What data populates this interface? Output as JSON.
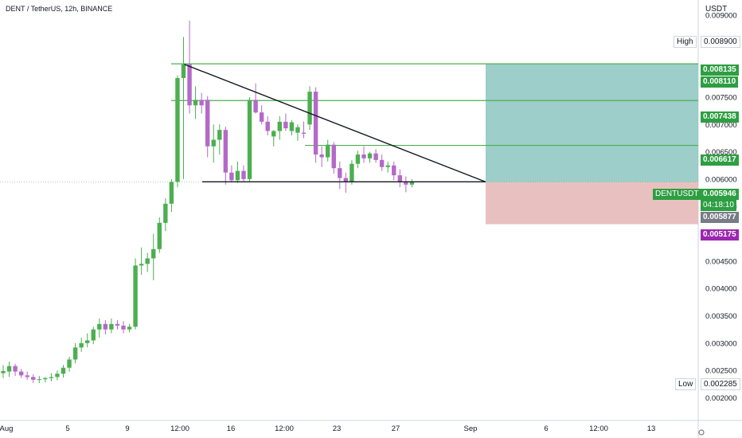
{
  "header": {
    "symbol_title": "DENT / TetherUS, 12h, BINANCE",
    "currency": "USDT"
  },
  "colors": {
    "up": "#4caf50",
    "down": "#b469c8",
    "line_green": "#4caf50",
    "trendline": "#131722",
    "profit_zone": "#8cc5c1",
    "loss_zone": "#e5b5b5",
    "axis_text": "#131722",
    "current_price_bg": "#2e9e42",
    "target_tag_bg": "#2e9e42",
    "stop_tag_bg": "#9c27b0",
    "muted_tag_bg": "#787b86"
  },
  "chart_data": {
    "type": "candlestick",
    "y_axis": {
      "min": 0.0017,
      "max": 0.0097,
      "ticks": [
        "0.002000",
        "0.002500",
        "0.003000",
        "0.003500",
        "0.004000",
        "0.004500",
        "0.005000",
        "0.005500",
        "0.006000",
        "0.006500",
        "0.007000",
        "0.007500",
        "0.008000",
        "0.008500",
        "0.009000"
      ]
    },
    "x_axis": {
      "labels": [
        "Aug",
        "5",
        "9",
        "12:00",
        "16",
        "12:00",
        "23",
        "27",
        "Sep",
        "6",
        "12:00",
        "13"
      ]
    },
    "candles": [
      {
        "o": 0.00245,
        "h": 0.0026,
        "l": 0.00236,
        "c": 0.00249
      },
      {
        "o": 0.00248,
        "h": 0.00266,
        "l": 0.00238,
        "c": 0.00258
      },
      {
        "o": 0.00258,
        "h": 0.00262,
        "l": 0.0024,
        "c": 0.00248
      },
      {
        "o": 0.00248,
        "h": 0.00253,
        "l": 0.00236,
        "c": 0.00241
      },
      {
        "o": 0.00241,
        "h": 0.00248,
        "l": 0.00233,
        "c": 0.00238
      },
      {
        "o": 0.00238,
        "h": 0.00243,
        "l": 0.00227,
        "c": 0.00233
      },
      {
        "o": 0.00233,
        "h": 0.0024,
        "l": 0.00227,
        "c": 0.00234
      },
      {
        "o": 0.00234,
        "h": 0.00238,
        "l": 0.00228,
        "c": 0.00236
      },
      {
        "o": 0.00236,
        "h": 0.00245,
        "l": 0.0023,
        "c": 0.00238
      },
      {
        "o": 0.00238,
        "h": 0.0025,
        "l": 0.00232,
        "c": 0.00244
      },
      {
        "o": 0.00244,
        "h": 0.0026,
        "l": 0.00237,
        "c": 0.00255
      },
      {
        "o": 0.00255,
        "h": 0.00275,
        "l": 0.00248,
        "c": 0.0027
      },
      {
        "o": 0.0027,
        "h": 0.003,
        "l": 0.00263,
        "c": 0.00292
      },
      {
        "o": 0.00292,
        "h": 0.0031,
        "l": 0.00284,
        "c": 0.003
      },
      {
        "o": 0.003,
        "h": 0.00318,
        "l": 0.00292,
        "c": 0.00305
      },
      {
        "o": 0.00305,
        "h": 0.0033,
        "l": 0.00298,
        "c": 0.00325
      },
      {
        "o": 0.00325,
        "h": 0.00345,
        "l": 0.0031,
        "c": 0.00335
      },
      {
        "o": 0.00335,
        "h": 0.00342,
        "l": 0.00316,
        "c": 0.00325
      },
      {
        "o": 0.00325,
        "h": 0.00345,
        "l": 0.00318,
        "c": 0.00335
      },
      {
        "o": 0.00335,
        "h": 0.00342,
        "l": 0.00325,
        "c": 0.00332
      },
      {
        "o": 0.00332,
        "h": 0.0034,
        "l": 0.00318,
        "c": 0.00325
      },
      {
        "o": 0.00325,
        "h": 0.00335,
        "l": 0.0032,
        "c": 0.0033
      },
      {
        "o": 0.0033,
        "h": 0.00455,
        "l": 0.00325,
        "c": 0.00442
      },
      {
        "o": 0.00442,
        "h": 0.00475,
        "l": 0.00425,
        "c": 0.00445
      },
      {
        "o": 0.00445,
        "h": 0.00465,
        "l": 0.0043,
        "c": 0.00455
      },
      {
        "o": 0.00455,
        "h": 0.005,
        "l": 0.00415,
        "c": 0.00472
      },
      {
        "o": 0.00472,
        "h": 0.0053,
        "l": 0.00465,
        "c": 0.0052
      },
      {
        "o": 0.0052,
        "h": 0.00565,
        "l": 0.00505,
        "c": 0.00555
      },
      {
        "o": 0.00555,
        "h": 0.006,
        "l": 0.0054,
        "c": 0.00595
      },
      {
        "o": 0.00595,
        "h": 0.0079,
        "l": 0.00585,
        "c": 0.00785
      },
      {
        "o": 0.00785,
        "h": 0.0086,
        "l": 0.006,
        "c": 0.0081
      },
      {
        "o": 0.0081,
        "h": 0.0089,
        "l": 0.0072,
        "c": 0.00735
      },
      {
        "o": 0.00735,
        "h": 0.0077,
        "l": 0.0071,
        "c": 0.00745
      },
      {
        "o": 0.00745,
        "h": 0.00758,
        "l": 0.0072,
        "c": 0.00735
      },
      {
        "o": 0.00745,
        "h": 0.00752,
        "l": 0.0064,
        "c": 0.0066
      },
      {
        "o": 0.0066,
        "h": 0.007,
        "l": 0.0063,
        "c": 0.00672
      },
      {
        "o": 0.00672,
        "h": 0.007,
        "l": 0.00645,
        "c": 0.0069
      },
      {
        "o": 0.0069,
        "h": 0.00696,
        "l": 0.0059,
        "c": 0.00612
      },
      {
        "o": 0.00612,
        "h": 0.00625,
        "l": 0.00594,
        "c": 0.00598
      },
      {
        "o": 0.00598,
        "h": 0.00632,
        "l": 0.00593,
        "c": 0.00615
      },
      {
        "o": 0.00615,
        "h": 0.00625,
        "l": 0.00594,
        "c": 0.006
      },
      {
        "o": 0.006,
        "h": 0.0075,
        "l": 0.00596,
        "c": 0.00745
      },
      {
        "o": 0.00745,
        "h": 0.00775,
        "l": 0.0072,
        "c": 0.00722
      },
      {
        "o": 0.00722,
        "h": 0.00735,
        "l": 0.007,
        "c": 0.00705
      },
      {
        "o": 0.00705,
        "h": 0.00715,
        "l": 0.0068,
        "c": 0.00688
      },
      {
        "o": 0.00678,
        "h": 0.0069,
        "l": 0.0066,
        "c": 0.00688
      },
      {
        "o": 0.00688,
        "h": 0.00715,
        "l": 0.00672,
        "c": 0.00705
      },
      {
        "o": 0.00705,
        "h": 0.0072,
        "l": 0.00688,
        "c": 0.00693
      },
      {
        "o": 0.00688,
        "h": 0.00708,
        "l": 0.0068,
        "c": 0.00704
      },
      {
        "o": 0.00685,
        "h": 0.007,
        "l": 0.0067,
        "c": 0.00695
      },
      {
        "o": 0.00685,
        "h": 0.00705,
        "l": 0.00675,
        "c": 0.00683
      },
      {
        "o": 0.007,
        "h": 0.0077,
        "l": 0.0069,
        "c": 0.0076
      },
      {
        "o": 0.0076,
        "h": 0.00768,
        "l": 0.0063,
        "c": 0.00645
      },
      {
        "o": 0.00645,
        "h": 0.0066,
        "l": 0.00622,
        "c": 0.0064
      },
      {
        "o": 0.0064,
        "h": 0.00672,
        "l": 0.00632,
        "c": 0.00663
      },
      {
        "o": 0.00663,
        "h": 0.00668,
        "l": 0.0061,
        "c": 0.0062
      },
      {
        "o": 0.0062,
        "h": 0.00632,
        "l": 0.00582,
        "c": 0.00602
      },
      {
        "o": 0.00602,
        "h": 0.00612,
        "l": 0.00575,
        "c": 0.00595
      },
      {
        "o": 0.00595,
        "h": 0.00635,
        "l": 0.0059,
        "c": 0.00628
      },
      {
        "o": 0.00628,
        "h": 0.00652,
        "l": 0.0062,
        "c": 0.00645
      },
      {
        "o": 0.00645,
        "h": 0.0066,
        "l": 0.0063,
        "c": 0.00638
      },
      {
        "o": 0.00638,
        "h": 0.0065,
        "l": 0.0063,
        "c": 0.00647
      },
      {
        "o": 0.00647,
        "h": 0.00655,
        "l": 0.0063,
        "c": 0.00635
      },
      {
        "o": 0.00635,
        "h": 0.00645,
        "l": 0.00615,
        "c": 0.00622
      },
      {
        "o": 0.00622,
        "h": 0.00632,
        "l": 0.00612,
        "c": 0.00625
      },
      {
        "o": 0.00625,
        "h": 0.00632,
        "l": 0.00598,
        "c": 0.00607
      },
      {
        "o": 0.00607,
        "h": 0.00618,
        "l": 0.00585,
        "c": 0.00595
      },
      {
        "o": 0.00595,
        "h": 0.00605,
        "l": 0.00576,
        "c": 0.0059
      },
      {
        "o": 0.0059,
        "h": 0.006,
        "l": 0.00585,
        "c": 0.00595
      }
    ],
    "horizontal_levels": [
      0.00811,
      0.007438,
      0.006617
    ],
    "support_level": 0.00595,
    "trendline": {
      "from_index": 30,
      "from_price": 0.0081,
      "to_price": 0.00595
    },
    "position": {
      "entry": 0.005946,
      "target": 0.00811,
      "stop": 0.005175
    },
    "last_price": 0.005946
  },
  "price_tags": {
    "high_label": "High",
    "high_value": "0.008900",
    "t1": "0.008135",
    "t2": "0.008110",
    "t3": "0.007438",
    "t4": "0.006617",
    "symbol": "DENTUSDT",
    "current": "0.005946",
    "countdown": "04:18:10",
    "t5": "0.005877",
    "t6": "0.005175",
    "low_label": "Low",
    "low_value": "0.002285"
  }
}
